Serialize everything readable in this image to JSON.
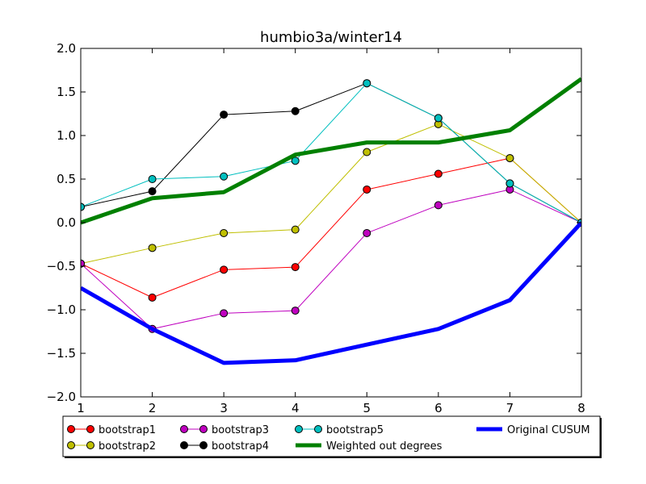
{
  "chart_data": {
    "type": "line",
    "title": "humbio3a/winter14",
    "xlabel": "",
    "ylabel": "",
    "xlim": [
      1,
      8
    ],
    "ylim": [
      -2.0,
      2.0
    ],
    "x": [
      1,
      2,
      3,
      4,
      5,
      6,
      7,
      8
    ],
    "xticks": [
      "1",
      "2",
      "3",
      "4",
      "5",
      "6",
      "7",
      "8"
    ],
    "yticks": [
      "2.0",
      "1.5",
      "1.0",
      "0.5",
      "0.0",
      "−0.5",
      "−1.0",
      "−1.5",
      "−2.0"
    ],
    "ytick_values": [
      2.0,
      1.5,
      1.0,
      0.5,
      0.0,
      -0.5,
      -1.0,
      -1.5,
      -2.0
    ],
    "grid": false,
    "legend_position": "below-plot",
    "series": [
      {
        "name": "bootstrap1",
        "color": "#ff0000",
        "marker": true,
        "width": 1,
        "values": [
          -0.47,
          -0.86,
          -0.54,
          -0.51,
          0.38,
          0.56,
          0.74,
          0.0
        ]
      },
      {
        "name": "bootstrap2",
        "color": "#bfbf00",
        "marker": true,
        "width": 1,
        "values": [
          -0.47,
          -0.29,
          -0.12,
          -0.08,
          0.81,
          1.13,
          0.74,
          0.0
        ]
      },
      {
        "name": "bootstrap3",
        "color": "#bf00bf",
        "marker": true,
        "width": 1,
        "values": [
          -0.47,
          -1.22,
          -1.04,
          -1.01,
          -0.12,
          0.2,
          0.38,
          0.0
        ]
      },
      {
        "name": "bootstrap4",
        "color": "#000000",
        "marker": true,
        "width": 1,
        "values": [
          0.18,
          0.36,
          1.24,
          1.28,
          1.6,
          1.2,
          0.45,
          0.0
        ]
      },
      {
        "name": "bootstrap5",
        "color": "#00bfbf",
        "marker": true,
        "width": 1,
        "values": [
          0.18,
          0.5,
          0.53,
          0.71,
          1.6,
          1.2,
          0.45,
          0.0
        ]
      },
      {
        "name": "Weighted out degrees",
        "color": "#008000",
        "marker": false,
        "width": 5,
        "values": [
          0.0,
          0.28,
          0.35,
          0.78,
          0.92,
          0.92,
          1.06,
          1.65
        ]
      },
      {
        "name": "Original CUSUM",
        "color": "#0000ff",
        "marker": false,
        "width": 5,
        "values": [
          -0.75,
          -1.22,
          -1.61,
          -1.58,
          -1.4,
          -1.22,
          -0.89,
          0.0
        ]
      }
    ],
    "legend_layout": [
      [
        "bootstrap1",
        "bootstrap3",
        "bootstrap5",
        "Original CUSUM"
      ],
      [
        "bootstrap2",
        "bootstrap4",
        "Weighted out degrees"
      ]
    ]
  }
}
